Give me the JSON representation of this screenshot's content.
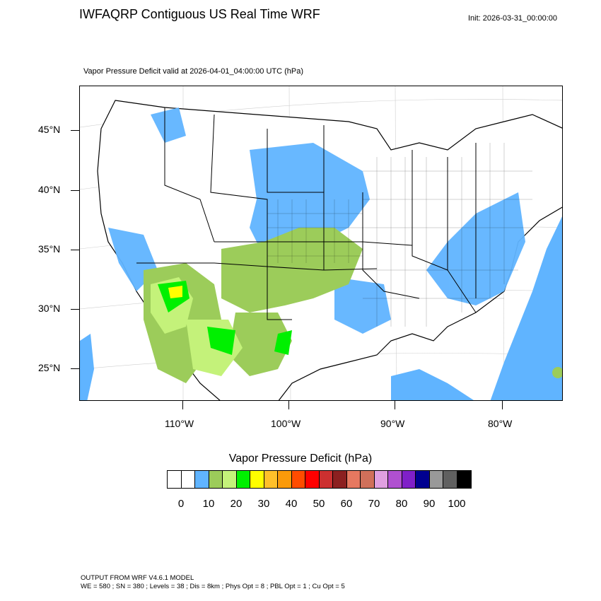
{
  "header": {
    "title": "IWFAQRP Contiguous US Real Time WRF",
    "init": "Init: 2026-03-31_00:00:00"
  },
  "map": {
    "subtitle": "Vapor Pressure Deficit valid at 2026-04-01_04:00:00 UTC   (hPa)",
    "lat_labels": [
      "45°N",
      "40°N",
      "35°N",
      "30°N",
      "25°N"
    ],
    "lon_labels": [
      "110°W",
      "100°W",
      "90°W",
      "80°W"
    ],
    "colors": {
      "ocean_low": "#60b4ff",
      "land_white": "#ffffff",
      "fill_10": "#60b4ff",
      "fill_15": "#9ccc5a",
      "fill_20": "#c4f27a",
      "fill_25": "#00f000",
      "fill_30": "#ffff00",
      "borders": "#000000"
    }
  },
  "colorbar": {
    "title": "Vapor Pressure Deficit  (hPa)",
    "colors": [
      "#ffffff",
      "#ffffff",
      "#60b4ff",
      "#9ccc5a",
      "#c4f27a",
      "#00f000",
      "#ffff00",
      "#ffc02a",
      "#fa9a0a",
      "#ff4c00",
      "#ff0000",
      "#cc3030",
      "#8c2020",
      "#e67860",
      "#d0705a",
      "#e0a0e0",
      "#b050d0",
      "#8020c8",
      "#000090",
      "#999999",
      "#606060",
      "#000000"
    ],
    "labels": [
      "0",
      "10",
      "20",
      "30",
      "40",
      "50",
      "60",
      "70",
      "80",
      "90",
      "100"
    ]
  },
  "footer": {
    "line1": "OUTPUT FROM WRF V4.6.1 MODEL",
    "line2": "WE = 580 ; SN = 380 ; Levels = 38 ; Dis = 8km ; Phys Opt = 8 ; PBL Opt = 1 ; Cu Opt = 5"
  }
}
